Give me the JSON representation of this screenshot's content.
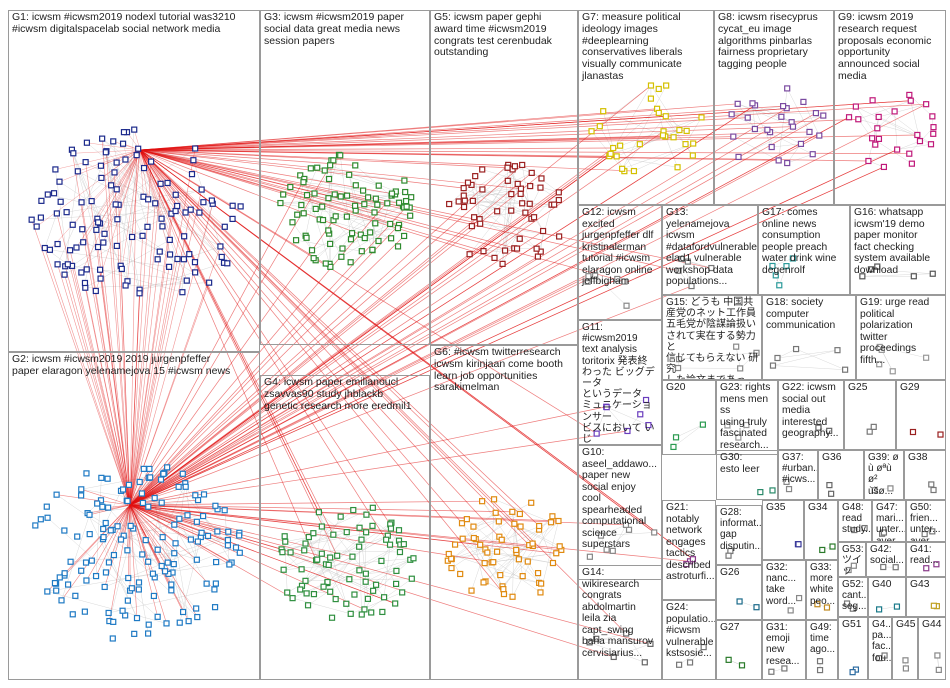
{
  "colors": {
    "edge": "#e01010",
    "edge_faint": "#c8c8c8",
    "panel_border": "#9a9a9a",
    "group_colors": {
      "G1": "#1c2a8c",
      "G2": "#1f7ac4",
      "G3": "#2e8a2e",
      "G4": "#2f8f3f",
      "G5": "#9b2020",
      "G6": "#e08a10",
      "G7": "#d4c000",
      "G8": "#7a4aa0",
      "G9": "#c0197a",
      "G10": "#888888",
      "G11": "#6a3dbd",
      "G12": "#888888",
      "G13": "#777777",
      "G14": "#666666",
      "G15": "#888888",
      "G16": "#555555",
      "G17": "#2a9a9a",
      "G18": "#777777",
      "G19": "#999999",
      "G20": "#2a9a50",
      "G21": "#8a3a8a",
      "G22": "#666666",
      "G23": "#999999",
      "G24": "#777777",
      "G26": "#1a6a8a",
      "G27": "#2a7a2a",
      "G28": "#777777",
      "G29": "#9a2020",
      "G30": "#2a8a6a",
      "G31": "#777777",
      "G32": "#888888",
      "G33": "#c08a20",
      "G34": "#2a7a2a",
      "G35": "#3a3a9a",
      "G36": "#666666",
      "G37": "#888888",
      "G38": "#777777",
      "G39": "#888888",
      "G40": "#1a7a8a",
      "G41": "#8a3a8a",
      "G42": "#777777",
      "G43": "#c0a020",
      "G44": "#888888",
      "G45": "#888888",
      "G46": "#777777",
      "G47": "#777777",
      "G48": "#777777",
      "G49": "#777777",
      "G50": "#777777",
      "G51": "#2a6aa0",
      "G52": "#777777",
      "G53": "#888888",
      "G25": "#777777"
    }
  },
  "groups": [
    {
      "id": "G1",
      "label": "G1: icwsm #icwsm2019 nodexl tutorial was3210\n#icwsm digitalspacelab social network media"
    },
    {
      "id": "G2",
      "label": "G2: icwsm #icwsm2019 2019 jurgenpfeffer\npaper elaragon yelenamejova 15 #icwsm news"
    },
    {
      "id": "G3",
      "label": "G3: icwsm #icwsm2019 paper\nsocial data great media news\nsession papers"
    },
    {
      "id": "G4",
      "label": "G4: icwsm paper emilianoucl\nzsavvas90 study jhblackb\ngenetic research more eredmil1"
    },
    {
      "id": "G5",
      "label": "G5: icwsm paper gephi\naward time #icwsm2019\ncongrats test cerenbudak\noutstanding"
    },
    {
      "id": "G6",
      "label": "G6: #icwsm twitterresearch\nicwsm kirinjaan come booth\nlearn job opportunities\nsarakimelman"
    },
    {
      "id": "G7",
      "label": "G7: measure political\nideology images\n#deeplearning\nconservatives liberals\nvisually communicate\njlanastas"
    },
    {
      "id": "G8",
      "label": "G8: icwsm risecyprus\ncycat_eu image\nalgorithms pinbarlas\nfairness proprietary\ntagging people"
    },
    {
      "id": "G9",
      "label": "G9: icwsm 2019\nresearch request\nproposals economic\nopportunity\nannounced social\nmedia"
    },
    {
      "id": "G12",
      "label": "G12: icwsm\nexcited\njurgenpfeffer dlf\nkristinalerman\ntutorial #icwsm\nelaragon online\njeffbigham"
    },
    {
      "id": "G13",
      "label": "G13:\nyelenamejova\nicwsm\n#datafordvulnerable\nelad1 vulnerable\nworkshop data\npopulations..."
    },
    {
      "id": "G17",
      "label": "G17: comes\nonline news\nconsumption\npeople preach\nwater drink wine\ndegenrolf"
    },
    {
      "id": "G16",
      "label": "G16: whatsapp\nicwsm'19 demo\npaper monitor\nfact checking\nsystem available\ndownload"
    },
    {
      "id": "G15",
      "label": "G15: どうも 中国共\n産党のネット工作員\n五毛党が陰謀論扱い\nされて実在する勢力と\n信じてもらえない 研究\nした論文まであって..."
    },
    {
      "id": "G18",
      "label": "G18: society\ncomputer\ncommunication"
    },
    {
      "id": "G19",
      "label": "G19: urge read\npolitical\npolarization\ntwitter\nproceedings\nfifth..."
    },
    {
      "id": "G11",
      "label": "G11:\n#icwsm2019\ntext analysis\ntoritorix 発表終\nわった ビッグデータ\nというデータ\nミュニケーションサー\nビスにおいて いじ\nめに関する科学談..."
    },
    {
      "id": "G20",
      "label": "G20"
    },
    {
      "id": "G23",
      "label": "G23: rights\nmens men ss\nusing truly\nfascinated\nresearch..."
    },
    {
      "id": "G22",
      "label": "G22: icwsm\nsocial out\nmedia\ninterested\ngeography..."
    },
    {
      "id": "G25",
      "label": "G25"
    },
    {
      "id": "G29",
      "label": "G29"
    },
    {
      "id": "G10",
      "label": "G10:\naseel_addawo...\npaper new\nsocial enjoy\ncool\nspearheaded\ncomputational\nscience\nsuperstars"
    },
    {
      "id": "G30",
      "label": "G30:\nesto leer"
    },
    {
      "id": "G37",
      "label": "G37:\n#urban...\n#icws..."
    },
    {
      "id": "G36",
      "label": "G36"
    },
    {
      "id": "G39",
      "label": "G39: ø\nù øªù ø²\nùšø..."
    },
    {
      "id": "G38",
      "label": "G38"
    },
    {
      "id": "G21",
      "label": "G21:\nnotably\nnetwork\nengages\ntactics\ndescribed\nastroturfi..."
    },
    {
      "id": "G28",
      "label": "G28:\ninformat...\ngap\ndisputin..."
    },
    {
      "id": "G35",
      "label": "G35"
    },
    {
      "id": "G34",
      "label": "G34"
    },
    {
      "id": "G48",
      "label": "G48:\nread\nstudy..."
    },
    {
      "id": "G47",
      "label": "G47:\nmari...\nunter...\naver..."
    },
    {
      "id": "G50",
      "label": "G50:\nfrien...\nunter...\naver..."
    },
    {
      "id": "G53",
      "label": "G53:\nツイッ\nター..."
    },
    {
      "id": "G42",
      "label": "G42:\nsocial..."
    },
    {
      "id": "G41",
      "label": "G41:\nread..."
    },
    {
      "id": "G26",
      "label": "G26"
    },
    {
      "id": "G32",
      "label": "G32:\nnanc...\ntake\nword..."
    },
    {
      "id": "G33",
      "label": "G33:\nmore\nwhite\npeo..."
    },
    {
      "id": "G52",
      "label": "G52:\ncant...\nseg..."
    },
    {
      "id": "G40",
      "label": "G40"
    },
    {
      "id": "G43",
      "label": "G43"
    },
    {
      "id": "G14",
      "label": "G14:\nwikiresearch\ncongrats\nabdolmartin\nleila zia\ncapt_swing\nbaha mansurov\ncervisiarius..."
    },
    {
      "id": "G24",
      "label": "G24:\npopulatio...\n#icwsm\nvulnerable\nkstsosie..."
    },
    {
      "id": "G27",
      "label": "G27"
    },
    {
      "id": "G31",
      "label": "G31:\nemoji\nnew\nresea..."
    },
    {
      "id": "G49",
      "label": "G49:\ntime\nago..."
    },
    {
      "id": "G51",
      "label": "G51"
    },
    {
      "id": "G46",
      "label": "G4..\npa...\nfac...\nfou..."
    },
    {
      "id": "G45",
      "label": "G45"
    },
    {
      "id": "G44",
      "label": "G44"
    }
  ]
}
